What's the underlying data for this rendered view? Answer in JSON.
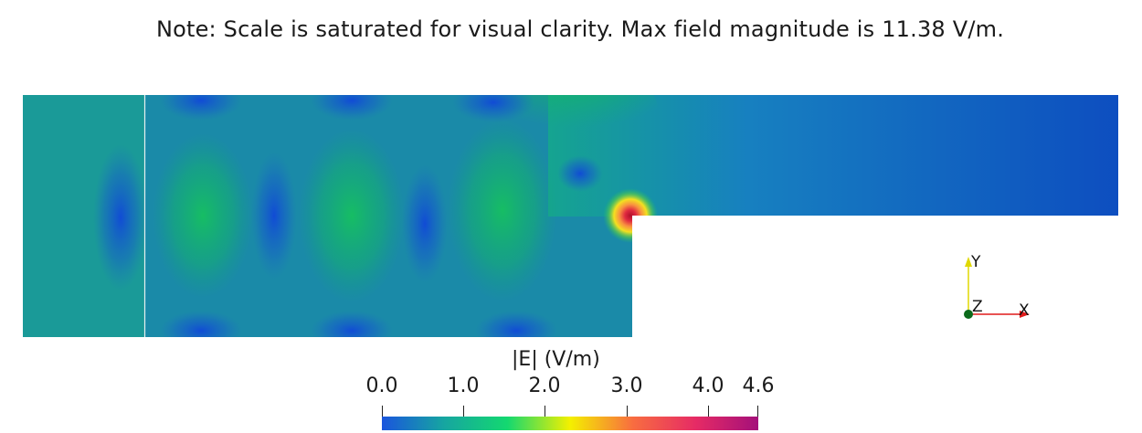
{
  "note": "Note: Scale is saturated for visual clarity. Max field magnitude is 11.38 V/m.",
  "colorbar": {
    "title": "|E| (V/m)",
    "ticks": [
      "0.0",
      "1.0",
      "2.0",
      "3.0",
      "4.0",
      "4.6"
    ],
    "range": [
      0.0,
      4.6
    ],
    "colors": [
      "#1a55dd",
      "#16a6a0",
      "#14d870",
      "#f4f000",
      "#f86d40",
      "#e62b65",
      "#a4107a"
    ]
  },
  "axes": {
    "x_label": "X",
    "y_label": "Y",
    "z_label": "Z",
    "x_color": "#e01a1a",
    "y_color": "#e0d800",
    "z_color": "#0b6a1b"
  },
  "field": {
    "background": "#1b6fc7",
    "low_color": "#0a49c0",
    "mid_color": "#12b96b",
    "peak_color": "#d0182f"
  }
}
